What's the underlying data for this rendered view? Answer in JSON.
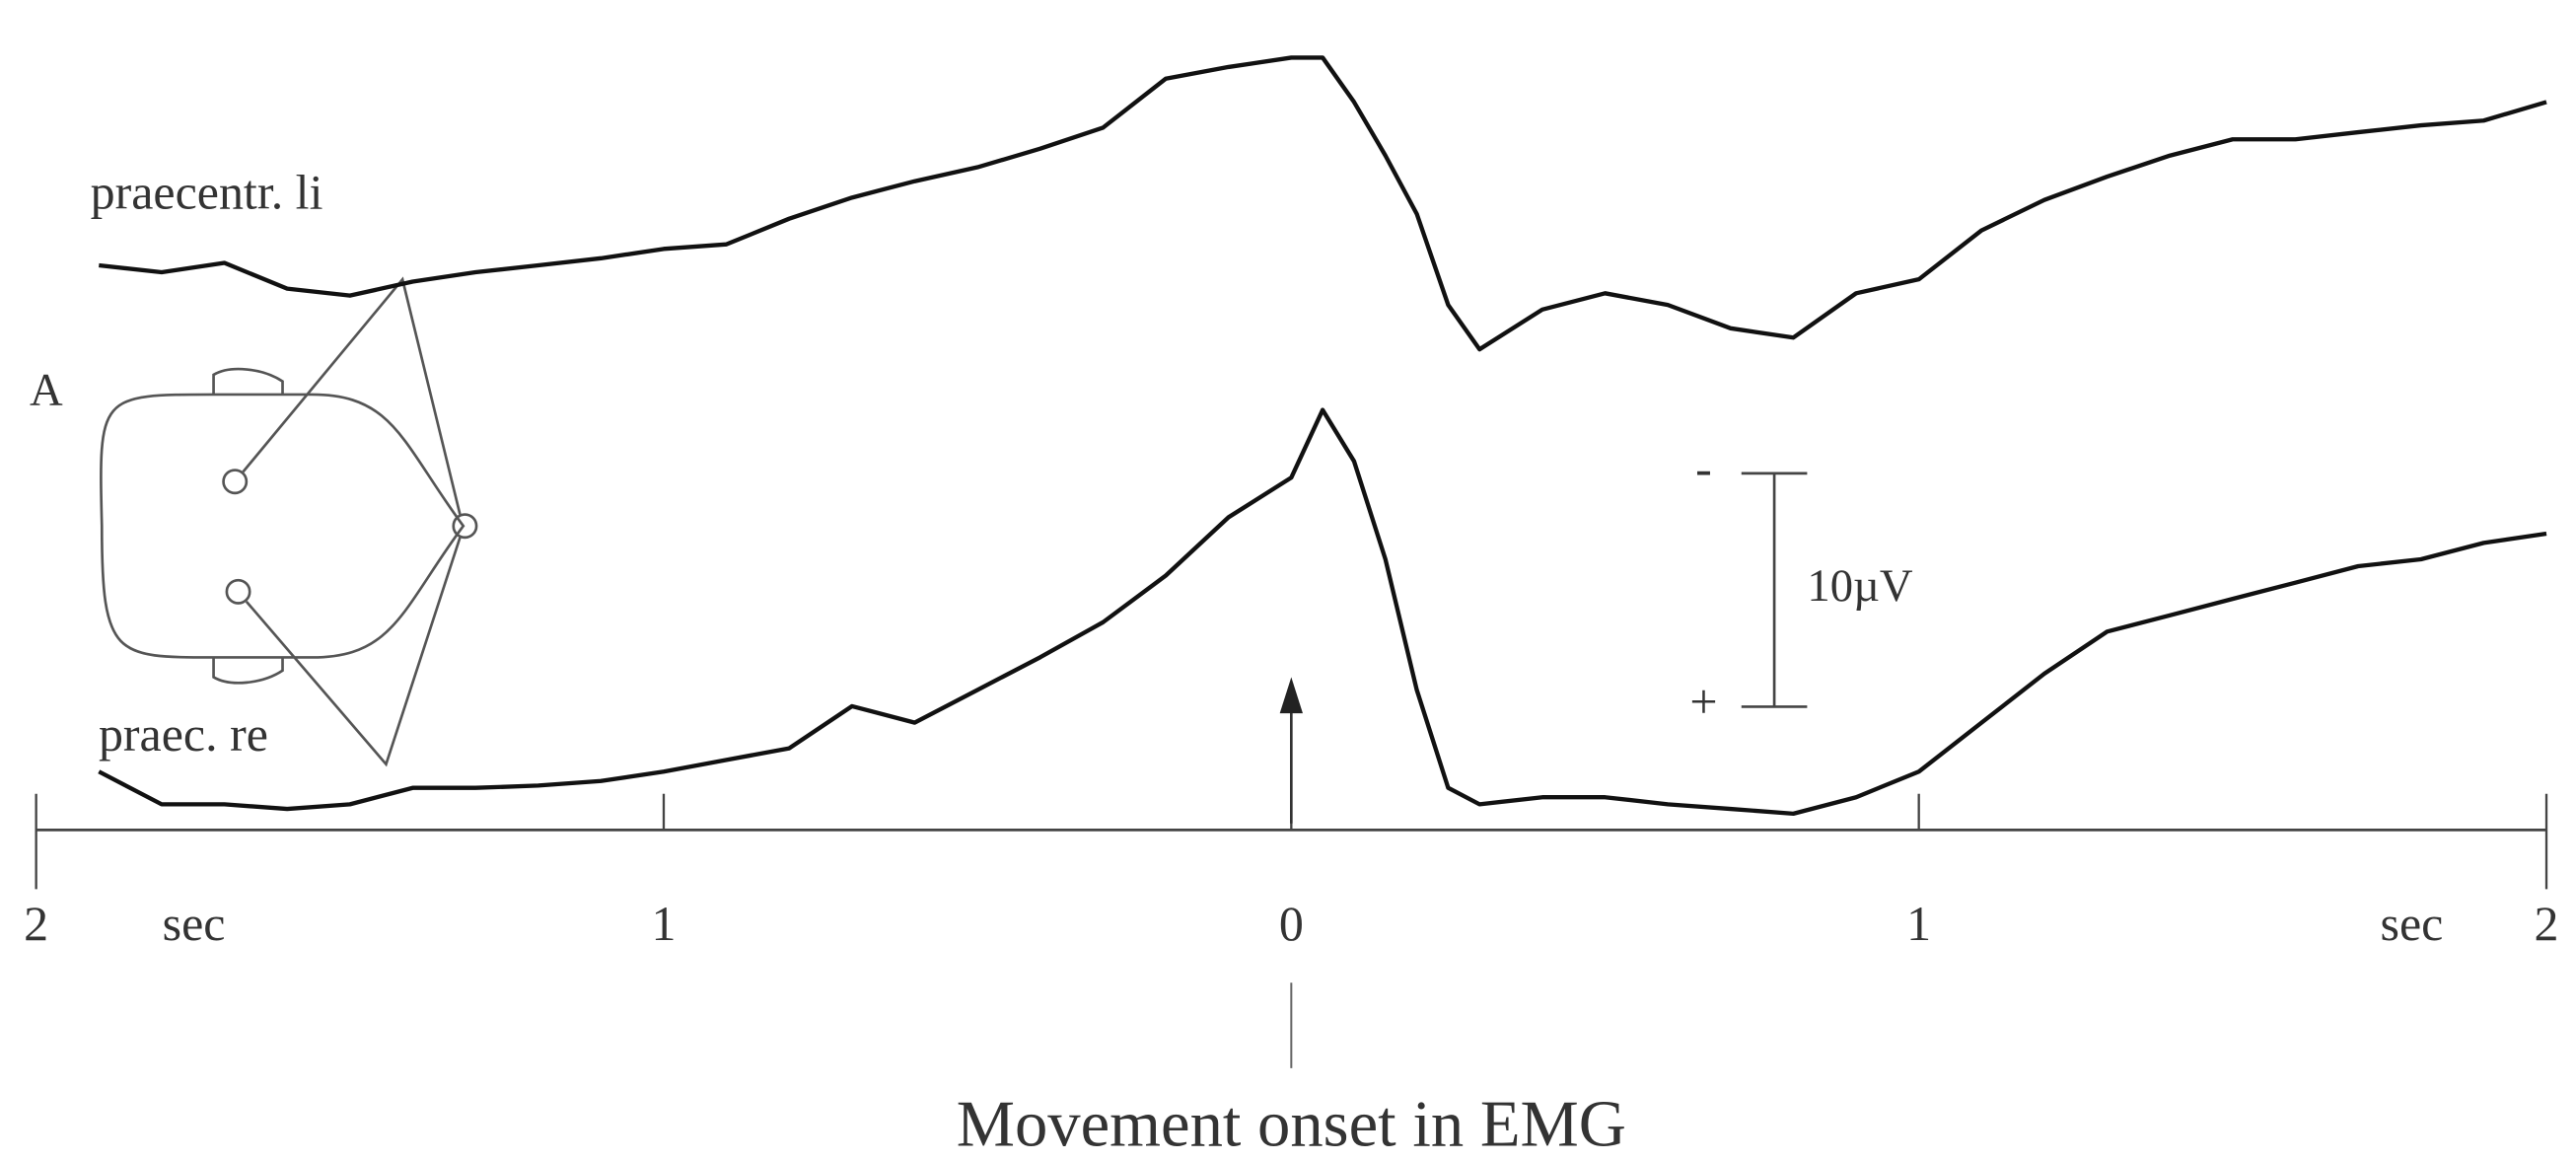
{
  "chart_data": {
    "type": "line",
    "panel_label": "A",
    "x": [
      -1.9,
      -1.8,
      -1.7,
      -1.6,
      -1.5,
      -1.4,
      -1.3,
      -1.2,
      -1.1,
      -1.0,
      -0.9,
      -0.8,
      -0.7,
      -0.6,
      -0.5,
      -0.4,
      -0.3,
      -0.2,
      -0.1,
      0.0,
      0.05,
      0.1,
      0.15,
      0.2,
      0.25,
      0.3,
      0.4,
      0.5,
      0.6,
      0.7,
      0.8,
      0.9,
      1.0,
      1.1,
      1.2,
      1.3,
      1.4,
      1.5,
      1.6,
      1.7,
      1.8,
      1.9,
      2.0
    ],
    "series": [
      {
        "name": "praecentr. li",
        "color": "#111111",
        "values": [
          -24.2,
          -23.9,
          -24.3,
          -23.2,
          -22.9,
          -23.5,
          -23.9,
          -24.2,
          -24.5,
          -24.9,
          -25.1,
          -26.2,
          -27.1,
          -27.8,
          -28.4,
          -29.2,
          -30.1,
          -32.2,
          -32.7,
          -33.1,
          -33.1,
          -31.2,
          -28.9,
          -26.4,
          -22.5,
          -20.6,
          -22.3,
          -23.0,
          -22.5,
          -21.5,
          -21.1,
          -23.0,
          -23.6,
          -25.7,
          -27.0,
          -28.0,
          -28.9,
          -29.6,
          -29.6,
          -29.9,
          -30.2,
          -30.4,
          -31.2
        ]
      },
      {
        "name": "praec. re",
        "color": "#111111",
        "values": [
          -2.5,
          -1.1,
          -1.1,
          -0.9,
          -1.1,
          -1.8,
          -1.8,
          -1.9,
          -2.1,
          -2.5,
          -3.0,
          -3.5,
          -5.3,
          -4.6,
          -6.0,
          -7.4,
          -8.9,
          -10.9,
          -13.4,
          -15.1,
          -18.0,
          -15.8,
          -11.6,
          -6.0,
          -1.8,
          -1.1,
          -1.4,
          -1.4,
          -1.1,
          -0.9,
          -0.7,
          -1.4,
          -2.5,
          -4.6,
          -6.7,
          -8.5,
          -9.2,
          -9.9,
          -10.6,
          -11.3,
          -11.6,
          -12.3,
          -12.7
        ]
      }
    ],
    "xlim": [
      -2,
      2
    ],
    "xticks": [
      {
        "value": -2,
        "label": "2"
      },
      {
        "value": -1,
        "label": "1"
      },
      0,
      1,
      2
    ],
    "x_unit": "sec",
    "ylim": [
      0,
      -35
    ],
    "scale_bar": {
      "value": 10,
      "label": "10µV",
      "top_label": "-",
      "bottom_label": "+"
    },
    "annotation": {
      "x": 0,
      "text": "Movement onset in EMG"
    }
  }
}
